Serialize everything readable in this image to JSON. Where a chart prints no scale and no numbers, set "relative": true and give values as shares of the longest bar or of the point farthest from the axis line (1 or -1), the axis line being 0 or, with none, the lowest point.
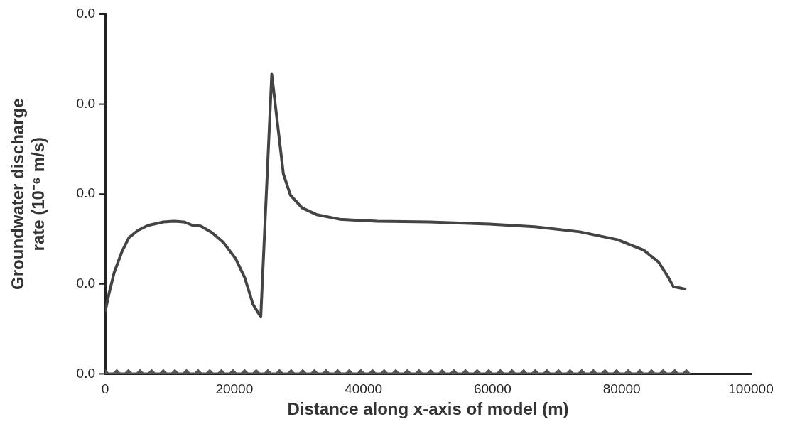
{
  "chart_data": {
    "type": "line",
    "relative": true,
    "xlabel": "Distance along x-axis of model (m)",
    "ylabel": "Groundwater discharge\nrate (10⁻⁶ m/s)",
    "xlim": [
      0,
      100000
    ],
    "xticks": [
      0,
      20000,
      40000,
      60000,
      80000,
      100000
    ],
    "annotations": [
      "0.0",
      "0.0",
      "0.0",
      "0.0",
      "0.0"
    ],
    "grid": false,
    "legend": false,
    "series": [
      {
        "color": "#444444",
        "marker": "none",
        "x": [
          0,
          600,
          1400,
          2600,
          3700,
          5100,
          6600,
          9000,
          10700,
          12200,
          13600,
          14800,
          16500,
          18300,
          20200,
          21600,
          22900,
          24100,
          25800,
          27600,
          28700,
          30500,
          32800,
          36300,
          42100,
          50200,
          59500,
          66500,
          73500,
          79300,
          83400,
          85700,
          87100,
          88000,
          89200,
          90000
        ],
        "values": [
          0.207,
          0.268,
          0.338,
          0.408,
          0.455,
          0.479,
          0.495,
          0.507,
          0.509,
          0.507,
          0.495,
          0.493,
          0.472,
          0.439,
          0.385,
          0.322,
          0.232,
          0.19,
          1.0,
          0.667,
          0.596,
          0.554,
          0.531,
          0.516,
          0.509,
          0.507,
          0.5,
          0.491,
          0.474,
          0.448,
          0.413,
          0.373,
          0.326,
          0.291,
          0.286,
          0.282
        ]
      },
      {
        "color": "#555555",
        "marker": "diamond",
        "x": [
          0,
          1800,
          3600,
          5400,
          7200,
          9000,
          10800,
          12600,
          14400,
          16200,
          18000,
          19800,
          21600,
          23400,
          25200,
          27000,
          28800,
          30600,
          32400,
          34200,
          36000,
          37800,
          39600,
          41400,
          43200,
          45000,
          46800,
          48600,
          50400,
          52200,
          54000,
          55800,
          57600,
          59400,
          61200,
          63000,
          64800,
          66600,
          68400,
          70200,
          72000,
          73800,
          75600,
          77400,
          79200,
          81000,
          82800,
          84600,
          86400,
          88200,
          90000
        ],
        "values": [
          0,
          0,
          0,
          0,
          0,
          0,
          0,
          0,
          0,
          0,
          0,
          0,
          0,
          0,
          0,
          0,
          0,
          0,
          0,
          0,
          0,
          0,
          0,
          0,
          0,
          0,
          0,
          0,
          0,
          0,
          0,
          0,
          0,
          0,
          0,
          0,
          0,
          0,
          0,
          0,
          0,
          0,
          0,
          0,
          0,
          0,
          0,
          0,
          0,
          0,
          0
        ]
      }
    ]
  }
}
